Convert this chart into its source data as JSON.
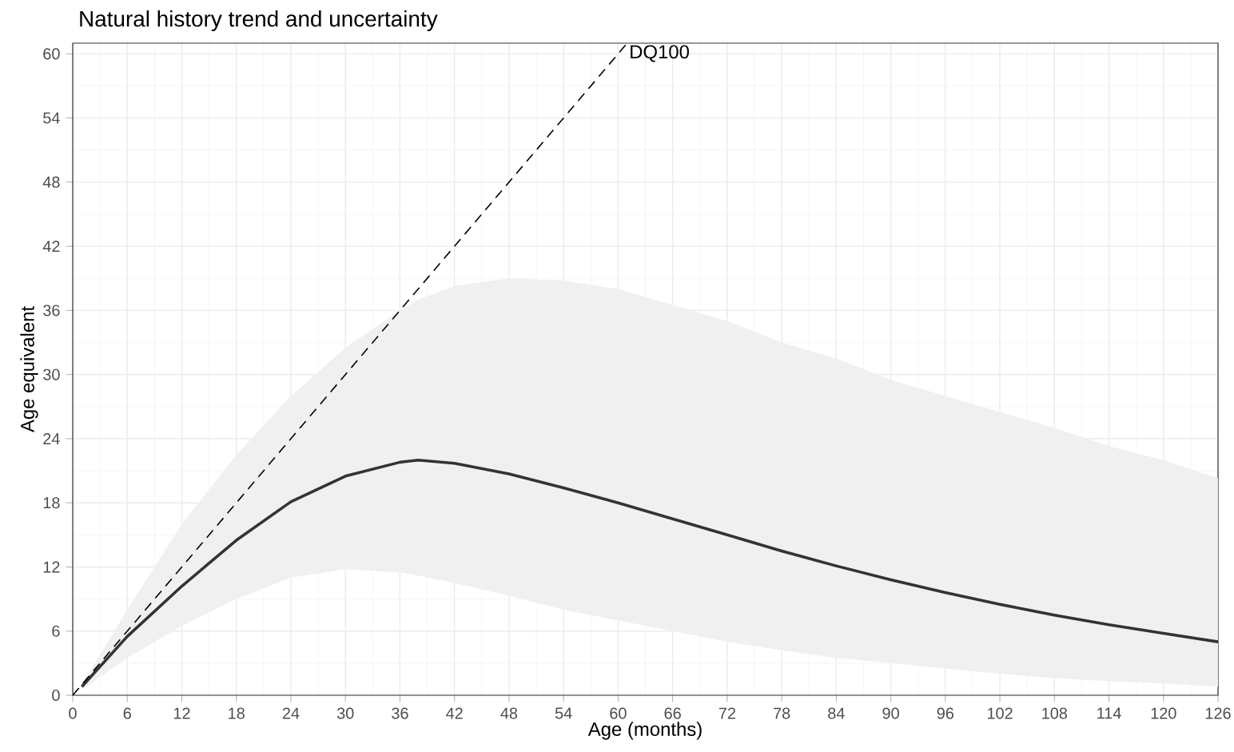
{
  "chart_data": {
    "type": "line",
    "title": "Natural history trend and uncertainty",
    "xlabel": "Age (months)",
    "ylabel": "Age equivalent",
    "xlim": [
      0,
      126
    ],
    "ylim": [
      0,
      61
    ],
    "xticks": [
      0,
      6,
      12,
      18,
      24,
      30,
      36,
      42,
      48,
      54,
      60,
      66,
      72,
      78,
      84,
      90,
      96,
      102,
      108,
      114,
      120,
      126
    ],
    "yticks": [
      0,
      6,
      12,
      18,
      24,
      30,
      36,
      42,
      48,
      54,
      60
    ],
    "grid": true,
    "legend": false,
    "series": [
      {
        "color": "#333333",
        "x": [
          1,
          6,
          12,
          18,
          24,
          30,
          36,
          38,
          42,
          48,
          54,
          60,
          66,
          72,
          78,
          84,
          90,
          96,
          102,
          108,
          114,
          120,
          126
        ],
        "values": [
          0.8,
          5.5,
          10.2,
          14.5,
          18.1,
          20.5,
          21.8,
          22,
          21.7,
          20.7,
          19.4,
          18,
          16.5,
          15,
          13.5,
          12.1,
          10.8,
          9.6,
          8.5,
          7.5,
          6.6,
          5.8,
          5
        ],
        "lower": [
          0.5,
          3.5,
          6.5,
          9,
          11,
          11.8,
          11.5,
          11.2,
          10.5,
          9.3,
          8,
          7,
          6,
          5,
          4.2,
          3.5,
          3,
          2.5,
          2,
          1.6,
          1.3,
          1.1,
          0.8
        ],
        "upper": [
          1,
          8,
          16,
          22.5,
          28,
          32.5,
          36,
          37,
          38.3,
          39,
          38.8,
          38,
          36.5,
          35,
          33,
          31.5,
          29.5,
          28,
          26.5,
          25,
          23.3,
          22,
          20.3
        ]
      },
      {
        "name": "DQ100",
        "color": "#000000",
        "line_style": "dashed",
        "x": [
          0,
          61
        ],
        "values": [
          0,
          61
        ]
      }
    ]
  }
}
